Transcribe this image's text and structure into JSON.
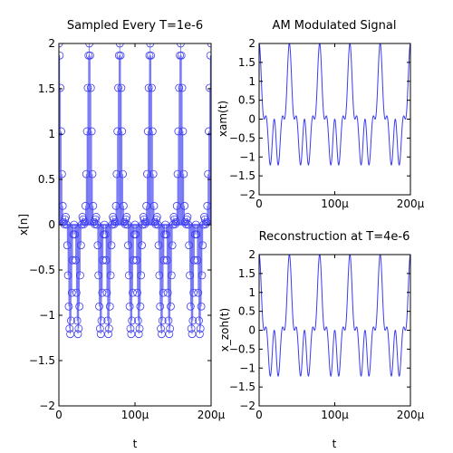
{
  "chart_data": [
    {
      "type": "stem",
      "title": "Sampled Every T=1e-6",
      "xlabel": "t",
      "ylabel": "x[n]",
      "xlim": [
        0,
        0.0002
      ],
      "ylim": [
        -2,
        2
      ],
      "xticks": [
        {
          "v": 0,
          "label": "0"
        },
        {
          "v": 0.0001,
          "label": "100μ"
        },
        {
          "v": 0.0002,
          "label": "200μ"
        }
      ],
      "yticks": [
        {
          "v": -2,
          "label": "−2"
        },
        {
          "v": -1.5,
          "label": "−1.5"
        },
        {
          "v": -1,
          "label": "−1"
        },
        {
          "v": -0.5,
          "label": "−0.5"
        },
        {
          "v": 0,
          "label": "0"
        },
        {
          "v": 0.5,
          "label": "0.5"
        },
        {
          "v": 1,
          "label": "1"
        },
        {
          "v": 1.5,
          "label": "1.5"
        },
        {
          "v": 2,
          "label": "2"
        }
      ],
      "grid": false,
      "signal": {
        "expression": "x(t) = cos(2π·fm·t)·(1 + cos(2π·fc·t))",
        "fm_hz": 25000,
        "fc_hz": 75000,
        "t_start": 0,
        "t_end": 0.0002,
        "sample_period": 1e-06
      },
      "marker": "open-circle",
      "color": "#3c3cf0"
    },
    {
      "type": "line",
      "title": "AM Modulated Signal",
      "xlabel": "t",
      "ylabel": "xam(t)",
      "xlim": [
        0,
        0.0002
      ],
      "ylim": [
        -2,
        2
      ],
      "xticks": [
        {
          "v": 0,
          "label": "0"
        },
        {
          "v": 0.0001,
          "label": "100μ"
        },
        {
          "v": 0.0002,
          "label": "200μ"
        }
      ],
      "yticks": [
        {
          "v": -2,
          "label": "−2"
        },
        {
          "v": -1.5,
          "label": "−1.5"
        },
        {
          "v": -1,
          "label": "−1"
        },
        {
          "v": -0.5,
          "label": "−0.5"
        },
        {
          "v": 0,
          "label": "0"
        },
        {
          "v": 0.5,
          "label": "0.5"
        },
        {
          "v": 1,
          "label": "1"
        },
        {
          "v": 1.5,
          "label": "1.5"
        },
        {
          "v": 2,
          "label": "2"
        }
      ],
      "grid": false,
      "signal": {
        "expression": "x(t) = cos(2π·fm·t)·(1 + cos(2π·fc·t))",
        "fm_hz": 25000,
        "fc_hz": 75000,
        "t_start": 0,
        "t_end": 0.0002
      },
      "color": "#3c3cf0"
    },
    {
      "type": "line",
      "title": "Reconstruction at T=4e-6",
      "xlabel": "t",
      "ylabel": "x_zoh(t)",
      "xlim": [
        0,
        0.0002
      ],
      "ylim": [
        -2,
        2
      ],
      "xticks": [
        {
          "v": 0,
          "label": "0"
        },
        {
          "v": 0.0001,
          "label": "100μ"
        },
        {
          "v": 0.0002,
          "label": "200μ"
        }
      ],
      "yticks": [
        {
          "v": -2,
          "label": "−2"
        },
        {
          "v": -1.5,
          "label": "−1.5"
        },
        {
          "v": -1,
          "label": "−1"
        },
        {
          "v": -0.5,
          "label": "−0.5"
        },
        {
          "v": 0,
          "label": "0"
        },
        {
          "v": 0.5,
          "label": "0.5"
        },
        {
          "v": 1,
          "label": "1"
        },
        {
          "v": 1.5,
          "label": "1.5"
        },
        {
          "v": 2,
          "label": "2"
        }
      ],
      "grid": false,
      "signal": {
        "expression": "x(t) = cos(2π·fm·t)·(1 + cos(2π·fc·t))",
        "fm_hz": 25000,
        "fc_hz": 75000,
        "t_start": 0,
        "t_end": 0.0002
      },
      "color": "#3c3cf0"
    }
  ]
}
